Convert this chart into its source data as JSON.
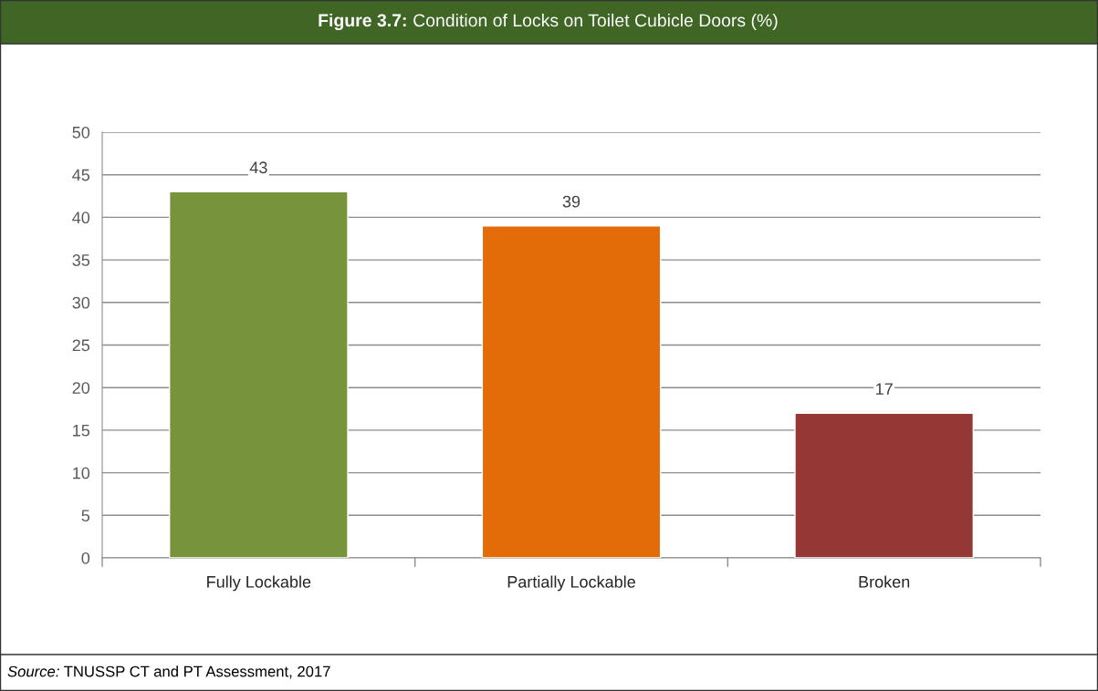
{
  "chart_data": {
    "type": "bar",
    "title": "Figure 3.7: Condition of Locks on Toilet Cubicle Doors (%)",
    "categories": [
      "Fully Lockable",
      "Partially Lockable",
      "Broken"
    ],
    "values": [
      43,
      39,
      17
    ],
    "colors": [
      "#77933c",
      "#e36c09",
      "#953735"
    ],
    "ylim": [
      0,
      50
    ],
    "yticks": [
      0,
      5,
      10,
      15,
      20,
      25,
      30,
      35,
      40,
      45,
      50
    ],
    "grid": "y",
    "data_labels": true,
    "annotations": [
      "Source: TNUSSP CT and PT Assessment, 2017"
    ]
  }
}
